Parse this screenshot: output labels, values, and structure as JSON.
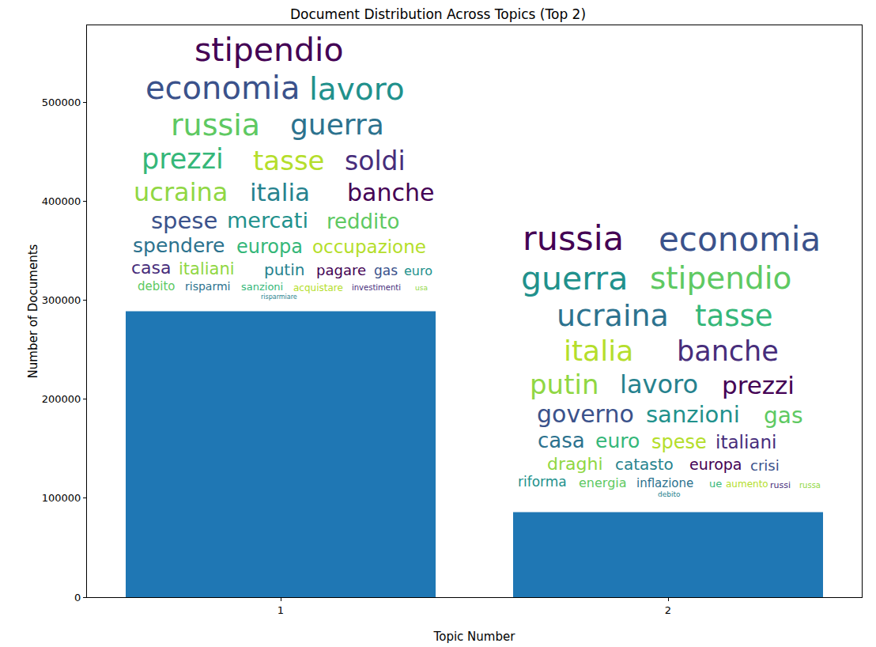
{
  "chart_data": {
    "type": "bar",
    "title": "Document Distribution Across Topics (Top 2)",
    "x_label": "Topic Number",
    "y_label": "Number of Documents",
    "categories": [
      "1",
      "2"
    ],
    "values": [
      289000,
      86000
    ],
    "color": "#1f77b4",
    "ylim": [
      0,
      578000
    ],
    "yticks": [
      0,
      100000,
      200000,
      300000,
      400000,
      500000
    ],
    "grid": false,
    "word_clouds": [
      [
        "stipendio",
        "economia",
        "lavoro",
        "russia",
        "guerra",
        "prezzi",
        "tasse",
        "soldi",
        "ucraina",
        "italia",
        "banche",
        "spese",
        "mercati",
        "reddito",
        "spendere",
        "europa",
        "occupazione",
        "casa",
        "italiani",
        "putin",
        "pagare",
        "gas",
        "euro",
        "debito",
        "risparmi",
        "sanzioni",
        "acquistare",
        "investimenti",
        "usa",
        "risparmiare"
      ],
      [
        "russia",
        "economia",
        "guerra",
        "stipendio",
        "ucraina",
        "tasse",
        "italia",
        "banche",
        "putin",
        "lavoro",
        "prezzi",
        "governo",
        "sanzioni",
        "gas",
        "casa",
        "euro",
        "spese",
        "italiani",
        "draghi",
        "catasto",
        "europa",
        "crisi",
        "riforma",
        "energia",
        "inflazione",
        "ue",
        "aumento",
        "russi",
        "russa",
        "debito"
      ]
    ]
  }
}
